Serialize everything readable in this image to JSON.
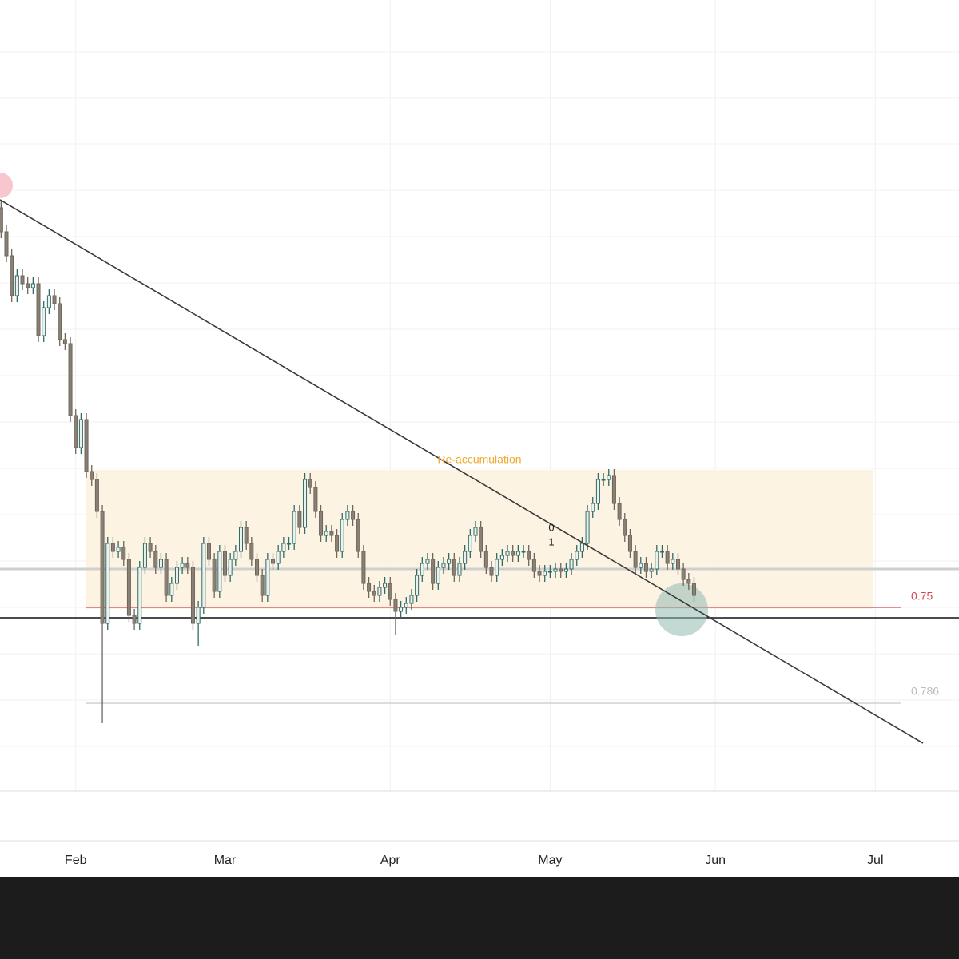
{
  "chart_data": {
    "type": "candlestick",
    "x": [
      18,
      19,
      20,
      21,
      22,
      23,
      24,
      25,
      26,
      27,
      28,
      29,
      30,
      31,
      32,
      33,
      34,
      35,
      36,
      37,
      38,
      39,
      40,
      41,
      42,
      43,
      44,
      45,
      46,
      47,
      48,
      49,
      50,
      51,
      52,
      53,
      54,
      55,
      56,
      57,
      58,
      59,
      60,
      61,
      62,
      63,
      64,
      65,
      66,
      67,
      68,
      69,
      70,
      71,
      72,
      73,
      74,
      75,
      76,
      77,
      78,
      79,
      80,
      81,
      82,
      83,
      84,
      85,
      86,
      87,
      88,
      89,
      90,
      91,
      92,
      93,
      94,
      95,
      96,
      97,
      98,
      99,
      100,
      101,
      102,
      103,
      104,
      105,
      106,
      107,
      108,
      109,
      110,
      111,
      112,
      113,
      114,
      115,
      116,
      117,
      118,
      119,
      120,
      121,
      122,
      123,
      124,
      125,
      126,
      127,
      128,
      129,
      130,
      131,
      132,
      133,
      134,
      135,
      136,
      137,
      138,
      139,
      140,
      141,
      142,
      143,
      144,
      145,
      146,
      147,
      148
    ],
    "open": [
      740,
      710,
      680,
      630,
      655,
      645,
      640,
      645,
      580,
      615,
      630,
      620,
      575,
      570,
      480,
      440,
      475,
      410,
      400,
      360,
      220,
      320,
      310,
      315,
      300,
      230,
      220,
      290,
      320,
      310,
      290,
      300,
      255,
      270,
      290,
      295,
      290,
      220,
      240,
      320,
      300,
      260,
      310,
      280,
      300,
      310,
      340,
      320,
      300,
      280,
      255,
      300,
      295,
      310,
      320,
      320,
      360,
      340,
      400,
      390,
      360,
      330,
      335,
      330,
      310,
      350,
      360,
      350,
      310,
      270,
      260,
      255,
      265,
      270,
      250,
      235,
      240,
      245,
      255,
      280,
      295,
      300,
      270,
      290,
      295,
      300,
      280,
      295,
      310,
      330,
      340,
      310,
      290,
      280,
      300,
      305,
      310,
      305,
      310,
      310,
      300,
      285,
      280,
      285,
      285,
      288,
      285,
      288,
      300,
      310,
      320,
      360,
      370,
      400,
      400,
      405,
      370,
      350,
      330,
      310,
      290,
      295,
      285,
      288,
      310,
      310,
      295,
      300,
      288,
      275,
      270
    ],
    "high": [
      748,
      718,
      688,
      663,
      663,
      653,
      653,
      653,
      623,
      638,
      638,
      628,
      583,
      578,
      488,
      483,
      483,
      418,
      408,
      368,
      328,
      328,
      323,
      323,
      308,
      238,
      298,
      328,
      328,
      318,
      308,
      308,
      278,
      298,
      303,
      303,
      298,
      248,
      328,
      328,
      308,
      318,
      318,
      308,
      318,
      348,
      348,
      328,
      308,
      288,
      308,
      308,
      318,
      328,
      328,
      368,
      368,
      408,
      408,
      398,
      368,
      343,
      343,
      338,
      358,
      368,
      368,
      358,
      318,
      278,
      268,
      273,
      278,
      278,
      258,
      248,
      253,
      263,
      288,
      303,
      308,
      308,
      298,
      303,
      308,
      308,
      303,
      318,
      338,
      348,
      348,
      318,
      298,
      308,
      313,
      318,
      318,
      318,
      318,
      318,
      308,
      293,
      293,
      293,
      296,
      296,
      296,
      308,
      318,
      328,
      368,
      378,
      408,
      408,
      413,
      413,
      378,
      358,
      338,
      318,
      303,
      303,
      296,
      318,
      318,
      318,
      308,
      308,
      296,
      283,
      278
    ],
    "low": [
      702,
      672,
      622,
      622,
      637,
      632,
      632,
      572,
      572,
      607,
      612,
      567,
      562,
      472,
      432,
      432,
      402,
      392,
      352,
      95,
      212,
      302,
      302,
      292,
      222,
      212,
      212,
      282,
      302,
      282,
      282,
      247,
      247,
      262,
      282,
      282,
      212,
      192,
      232,
      292,
      252,
      252,
      272,
      272,
      292,
      302,
      312,
      292,
      272,
      247,
      247,
      287,
      287,
      302,
      312,
      312,
      332,
      332,
      382,
      352,
      322,
      322,
      322,
      302,
      302,
      342,
      342,
      302,
      262,
      252,
      247,
      247,
      257,
      242,
      205,
      227,
      232,
      237,
      247,
      272,
      287,
      262,
      262,
      282,
      287,
      272,
      272,
      287,
      302,
      322,
      302,
      282,
      272,
      272,
      292,
      297,
      297,
      297,
      302,
      292,
      277,
      272,
      272,
      277,
      277,
      277,
      277,
      280,
      292,
      302,
      312,
      352,
      362,
      392,
      392,
      362,
      342,
      322,
      302,
      282,
      282,
      277,
      277,
      280,
      302,
      287,
      287,
      280,
      267,
      262,
      247
    ],
    "close": [
      710,
      680,
      630,
      655,
      645,
      640,
      645,
      580,
      615,
      630,
      620,
      575,
      570,
      480,
      440,
      475,
      410,
      400,
      360,
      220,
      320,
      310,
      315,
      300,
      230,
      220,
      290,
      320,
      310,
      290,
      300,
      255,
      270,
      290,
      295,
      290,
      220,
      240,
      320,
      300,
      260,
      310,
      280,
      300,
      310,
      340,
      320,
      300,
      280,
      255,
      300,
      295,
      310,
      320,
      320,
      360,
      340,
      400,
      390,
      360,
      330,
      335,
      330,
      310,
      350,
      360,
      350,
      310,
      270,
      260,
      255,
      265,
      270,
      250,
      235,
      240,
      245,
      255,
      280,
      295,
      300,
      270,
      290,
      295,
      300,
      280,
      295,
      310,
      330,
      340,
      310,
      290,
      280,
      300,
      305,
      310,
      305,
      310,
      310,
      300,
      285,
      280,
      285,
      285,
      288,
      285,
      288,
      300,
      310,
      320,
      360,
      370,
      400,
      400,
      405,
      370,
      350,
      330,
      310,
      290,
      295,
      285,
      288,
      310,
      310,
      295,
      300,
      288,
      275,
      270,
      255
    ],
    "up_color": "#2f6b66",
    "down_color": "#6e655b",
    "xlim": [
      17.8,
      197.7
    ],
    "xticks": [
      {
        "value": 32,
        "label": "Feb"
      },
      {
        "value": 60,
        "label": "Mar"
      },
      {
        "value": 91,
        "label": "Apr"
      },
      {
        "value": 121,
        "label": "May"
      },
      {
        "value": 152,
        "label": "Jun"
      },
      {
        "value": 182,
        "label": "Jul"
      }
    ],
    "ylim": [
      10,
      1000
    ],
    "grid": true,
    "annotations": [
      "Re-accumulation",
      "0",
      "1",
      "0.75",
      "0.786"
    ]
  }
}
